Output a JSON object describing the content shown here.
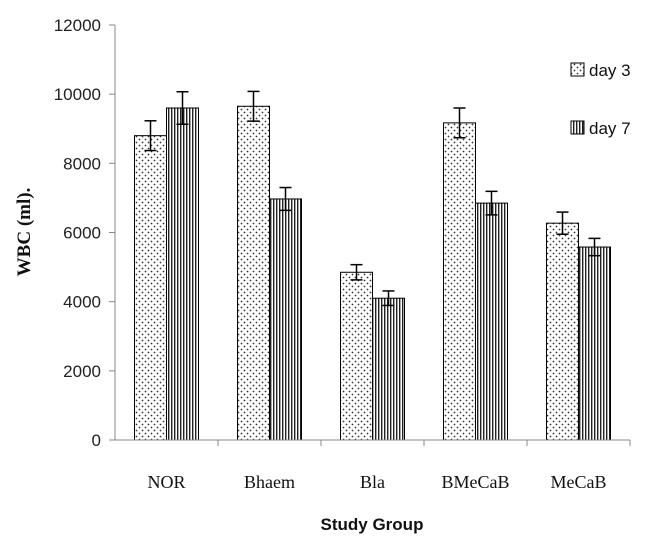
{
  "chart_data": {
    "type": "bar",
    "title": "",
    "xlabel": "Study Group",
    "ylabel": "WBC (ml).",
    "categories": [
      "NOR",
      "Bhaem",
      "Bla",
      "BMeCaB",
      "MeCaB"
    ],
    "series": [
      {
        "name": "day 3",
        "values": [
          8800,
          9650,
          4850,
          9170,
          6270
        ],
        "errors": [
          430,
          430,
          220,
          430,
          320
        ],
        "pattern": "dots"
      },
      {
        "name": "day 7",
        "values": [
          9600,
          6970,
          4100,
          6850,
          5580
        ],
        "errors": [
          470,
          330,
          210,
          340,
          250
        ],
        "pattern": "vertical-lines"
      }
    ],
    "ylim": [
      0,
      12000
    ],
    "yticks": [
      0,
      2000,
      4000,
      6000,
      8000,
      10000,
      12000
    ],
    "grid": false,
    "legend": "top-right"
  }
}
